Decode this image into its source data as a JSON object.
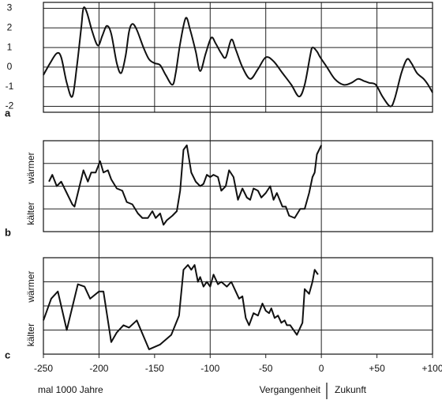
{
  "chart_data": [
    {
      "type": "line",
      "label": "a",
      "smooth": true,
      "color": "#111111",
      "xlim": [
        -250,
        100
      ],
      "ylim": [
        -2.3,
        3.3
      ],
      "yticks": [
        3,
        2,
        1,
        0,
        -1,
        -2
      ],
      "x": [
        -250,
        -244,
        -238,
        -234,
        -229,
        -224,
        -220,
        -216,
        -214,
        -211,
        -206,
        -201,
        -197,
        -193,
        -189,
        -184,
        -180,
        -176,
        -173,
        -170,
        -166,
        -160,
        -155,
        -150,
        -145,
        -140,
        -134,
        -131,
        -127,
        -122,
        -118,
        -113,
        -109,
        -104,
        -99,
        -95,
        -90,
        -86,
        -81,
        -77,
        -71,
        -64,
        -57,
        -50,
        -43,
        -35,
        -27,
        -20,
        -15,
        -10,
        -8,
        -4,
        -1,
        5,
        12,
        20,
        27,
        33,
        38,
        43,
        49,
        55,
        62,
        66,
        72,
        77,
        81,
        86,
        92,
        96,
        100
      ],
      "values": [
        -0.4,
        0.2,
        0.7,
        0.5,
        -0.8,
        -1.5,
        0.0,
        2.0,
        3.0,
        2.8,
        1.8,
        1.1,
        1.6,
        2.1,
        1.7,
        0.2,
        -0.3,
        0.6,
        1.8,
        2.2,
        1.9,
        1.0,
        0.4,
        0.2,
        0.1,
        -0.4,
        -0.9,
        -0.3,
        1.2,
        2.5,
        1.9,
        0.8,
        -0.2,
        0.7,
        1.5,
        1.2,
        0.7,
        0.5,
        1.4,
        0.9,
        0.0,
        -0.6,
        -0.1,
        0.5,
        0.3,
        -0.3,
        -0.9,
        -1.5,
        -0.9,
        0.6,
        1.0,
        0.8,
        0.5,
        0.0,
        -0.6,
        -0.9,
        -0.8,
        -0.6,
        -0.7,
        -0.8,
        -0.9,
        -1.5,
        -2.0,
        -1.6,
        -0.3,
        0.4,
        0.2,
        -0.3,
        -0.6,
        -0.9,
        -1.3
      ]
    },
    {
      "type": "line",
      "label": "b",
      "color": "#111111",
      "ylabel_top": "wärmer",
      "ylabel_bottom": "kälter",
      "xlim": [
        -250,
        100
      ],
      "ylim": [
        0,
        4
      ],
      "x": [
        -245,
        -242,
        -238,
        -234,
        -229,
        -224,
        -222,
        -219,
        -214,
        -210,
        -207,
        -203,
        -199,
        -196,
        -192,
        -189,
        -184,
        -179,
        -175,
        -170,
        -165,
        -161,
        -156,
        -152,
        -149,
        -145,
        -142,
        -139,
        -134,
        -130,
        -127,
        -124,
        -121,
        -117,
        -113,
        -109,
        -106,
        -103,
        -100,
        -97,
        -93,
        -90,
        -86,
        -83,
        -79,
        -75,
        -71,
        -67,
        -64,
        -61,
        -57,
        -54,
        -50,
        -46,
        -43,
        -40,
        -35,
        -32,
        -29,
        -24,
        -19,
        -15,
        -11,
        -8,
        -6,
        -4,
        0
      ],
      "values": [
        2.2,
        2.5,
        2.0,
        2.2,
        1.7,
        1.2,
        1.1,
        1.7,
        2.7,
        2.2,
        2.6,
        2.6,
        3.1,
        2.6,
        2.7,
        2.3,
        1.9,
        1.8,
        1.3,
        1.2,
        0.8,
        0.6,
        0.6,
        0.9,
        0.6,
        0.8,
        0.3,
        0.5,
        0.7,
        0.9,
        1.8,
        3.6,
        3.8,
        2.6,
        2.2,
        2.0,
        2.1,
        2.5,
        2.4,
        2.5,
        2.4,
        1.8,
        2.0,
        2.7,
        2.4,
        1.4,
        1.9,
        1.5,
        1.4,
        1.9,
        1.8,
        1.5,
        1.7,
        2.0,
        1.4,
        1.7,
        1.1,
        1.1,
        0.7,
        0.6,
        1.0,
        1.0,
        1.7,
        2.4,
        2.6,
        3.4,
        3.8
      ]
    },
    {
      "type": "line",
      "label": "c",
      "color": "#111111",
      "ylabel_top": "wärmer",
      "ylabel_bottom": "kälter",
      "xlim": [
        -250,
        100
      ],
      "ylim": [
        0,
        4
      ],
      "xticks": [
        -250,
        -200,
        -150,
        -100,
        -50,
        0,
        {
          "value": 50,
          "label": "+50"
        },
        {
          "value": 100,
          "label": "+100"
        }
      ],
      "xlabel": "mal 1000 Jahre",
      "annotations": [
        "Vergangenheit",
        "Zukunft"
      ],
      "x": [
        -250,
        -243,
        -237,
        -229,
        -219,
        -213,
        -208,
        -200,
        -196,
        -189,
        -184,
        -178,
        -173,
        -166,
        -155,
        -145,
        -135,
        -128,
        -124,
        -120,
        -117,
        -114,
        -111,
        -109,
        -106,
        -103,
        -100,
        -97,
        -93,
        -90,
        -85,
        -81,
        -77,
        -74,
        -71,
        -68,
        -65,
        -61,
        -57,
        -53,
        -50,
        -47,
        -45,
        -42,
        -39,
        -36,
        -33,
        -31,
        -28,
        -25,
        -22,
        -19,
        -17,
        -15,
        -11,
        -8,
        -6,
        -3
      ],
      "values": [
        1.4,
        2.3,
        2.6,
        1.0,
        2.9,
        2.8,
        2.3,
        2.6,
        2.6,
        0.5,
        0.9,
        1.2,
        1.1,
        1.4,
        0.2,
        0.4,
        0.8,
        1.6,
        3.5,
        3.7,
        3.5,
        3.7,
        3.0,
        3.2,
        2.8,
        3.0,
        2.8,
        3.3,
        2.9,
        3.0,
        2.8,
        3.0,
        2.6,
        2.3,
        2.4,
        1.5,
        1.2,
        1.7,
        1.6,
        2.1,
        1.8,
        1.7,
        1.9,
        1.5,
        1.6,
        1.3,
        1.4,
        1.2,
        1.2,
        1.0,
        0.8,
        1.1,
        1.3,
        2.7,
        2.5,
        3.0,
        3.5,
        3.3
      ]
    }
  ]
}
